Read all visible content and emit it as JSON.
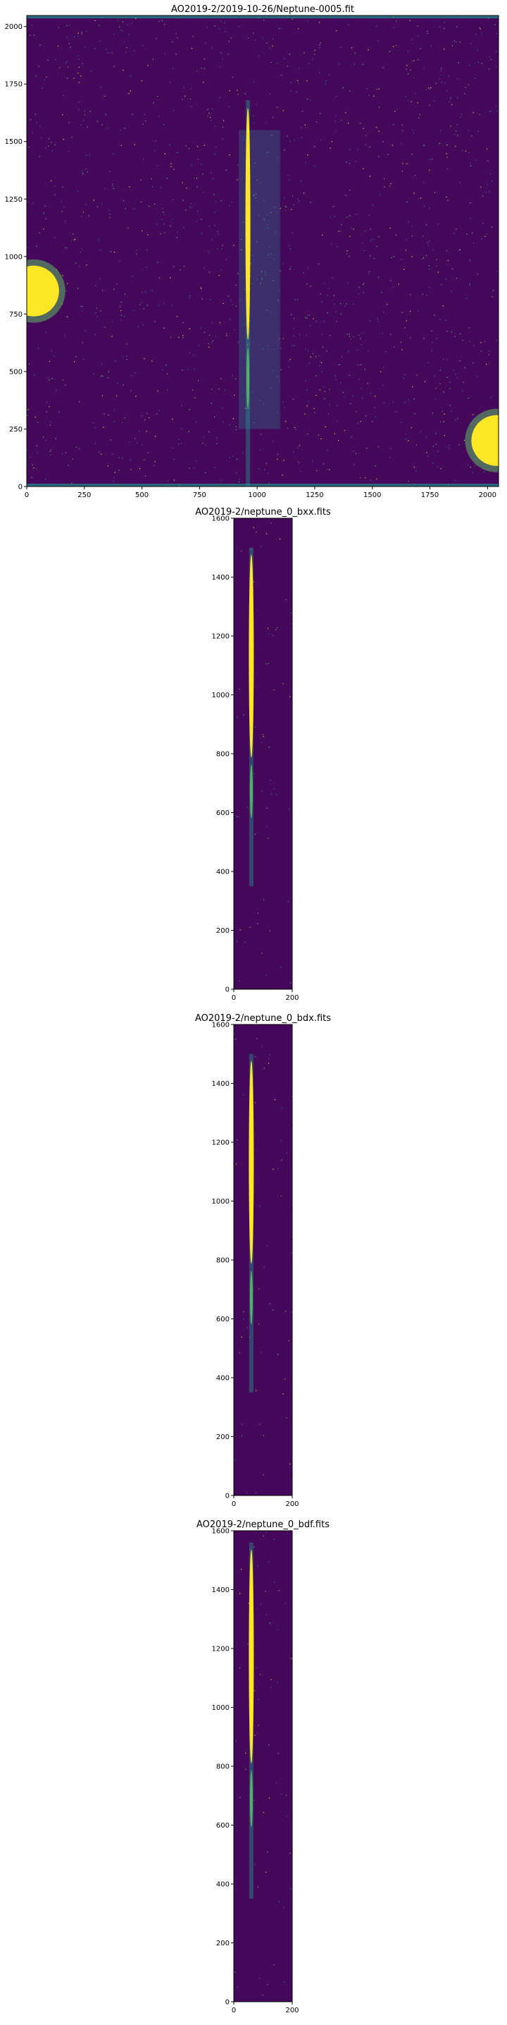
{
  "colors": {
    "bg": "#45085a",
    "mid": "#21918c",
    "teal": "#2a788e",
    "bright": "#fde725",
    "green": "#5ec962"
  },
  "chart_data": [
    {
      "type": "heatmap",
      "title": "AO2019-2/2019-10-26/Neptune-0005.fit",
      "xlim": [
        0,
        2048
      ],
      "ylim": [
        0,
        2048
      ],
      "xticks": [
        "0",
        "250",
        "500",
        "750",
        "1000",
        "1250",
        "1500",
        "1750",
        "2000"
      ],
      "yticks": [
        "0",
        "250",
        "500",
        "750",
        "1000",
        "1250",
        "1500",
        "1750",
        "2000"
      ],
      "colormap": "viridis",
      "features": [
        {
          "name": "spectrum-trace",
          "x": 960,
          "y_from": 0,
          "y_to": 1680
        },
        {
          "name": "bright-source-left",
          "x": 30,
          "y": 850
        },
        {
          "name": "bright-source-right",
          "x": 2040,
          "y": 200
        }
      ]
    },
    {
      "type": "heatmap",
      "title": "AO2019-2/neptune_0_bxx.fits",
      "xlim": [
        0,
        200
      ],
      "ylim": [
        0,
        1600
      ],
      "xticks": [
        "0",
        "200"
      ],
      "yticks": [
        "0",
        "200",
        "400",
        "600",
        "800",
        "1000",
        "1200",
        "1400",
        "1600"
      ],
      "colormap": "viridis",
      "features": [
        {
          "name": "spectrum-trace",
          "x": 60,
          "y_from": 350,
          "y_to": 1500
        }
      ]
    },
    {
      "type": "heatmap",
      "title": "AO2019-2/neptune_0_bdx.fits",
      "xlim": [
        0,
        200
      ],
      "ylim": [
        0,
        1600
      ],
      "xticks": [
        "0",
        "200"
      ],
      "yticks": [
        "0",
        "200",
        "400",
        "600",
        "800",
        "1000",
        "1200",
        "1400",
        "1600"
      ],
      "colormap": "viridis",
      "features": [
        {
          "name": "spectrum-trace",
          "x": 60,
          "y_from": 350,
          "y_to": 1500
        }
      ]
    },
    {
      "type": "heatmap",
      "title": "AO2019-2/neptune_0_bdf.fits",
      "xlim": [
        0,
        200
      ],
      "ylim": [
        0,
        1600
      ],
      "xticks": [
        "0",
        "200"
      ],
      "yticks": [
        "0",
        "200",
        "400",
        "600",
        "800",
        "1000",
        "1200",
        "1400",
        "1600"
      ],
      "colormap": "viridis",
      "features": [
        {
          "name": "spectrum-trace",
          "x": 60,
          "y_from": 350,
          "y_to": 1560
        }
      ]
    }
  ]
}
